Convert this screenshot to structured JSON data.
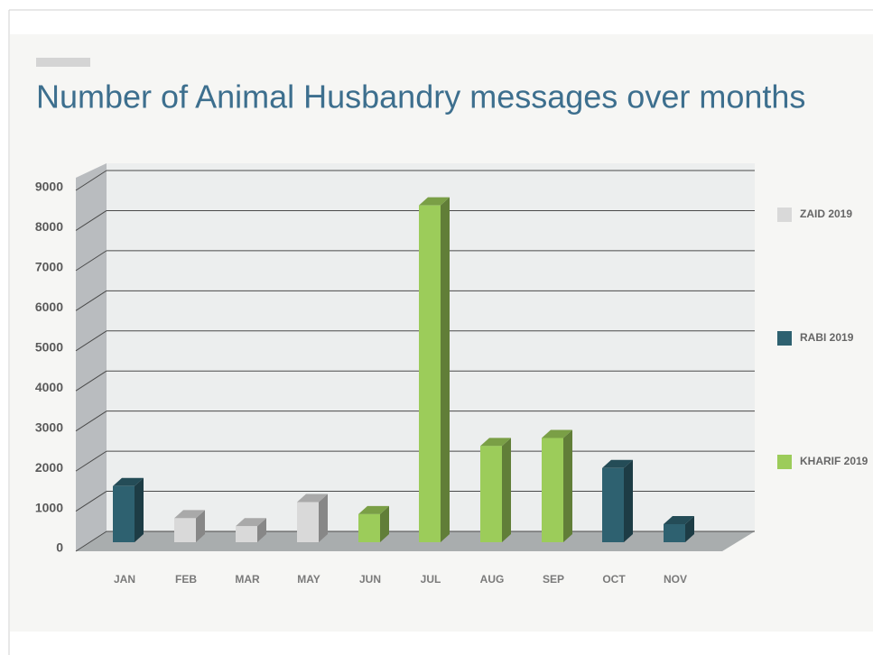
{
  "chart_data": {
    "type": "bar3d",
    "title": "Number of Animal Husbandry messages over months",
    "categories": [
      "JAN",
      "FEB",
      "MAR",
      "MAY",
      "JUN",
      "JUL",
      "AUG",
      "SEP",
      "OCT",
      "NOV"
    ],
    "series": [
      {
        "name": "ZAID 2019",
        "color": "#d9d9d9",
        "values": [
          null,
          600,
          400,
          1000,
          null,
          null,
          null,
          null,
          null,
          null
        ]
      },
      {
        "name": "RABI 2019",
        "color": "#2e6170",
        "values": [
          1400,
          null,
          null,
          null,
          null,
          null,
          null,
          null,
          1850,
          450
        ]
      },
      {
        "name": "KHARIF 2019",
        "color": "#9ccc5a",
        "values": [
          null,
          null,
          null,
          null,
          700,
          8400,
          2400,
          2600,
          null,
          null
        ]
      }
    ],
    "ylim": [
      0,
      9000
    ],
    "yticks": [
      0,
      1000,
      2000,
      3000,
      4000,
      5000,
      6000,
      7000,
      8000,
      9000
    ],
    "grid": true,
    "legend": "right"
  }
}
